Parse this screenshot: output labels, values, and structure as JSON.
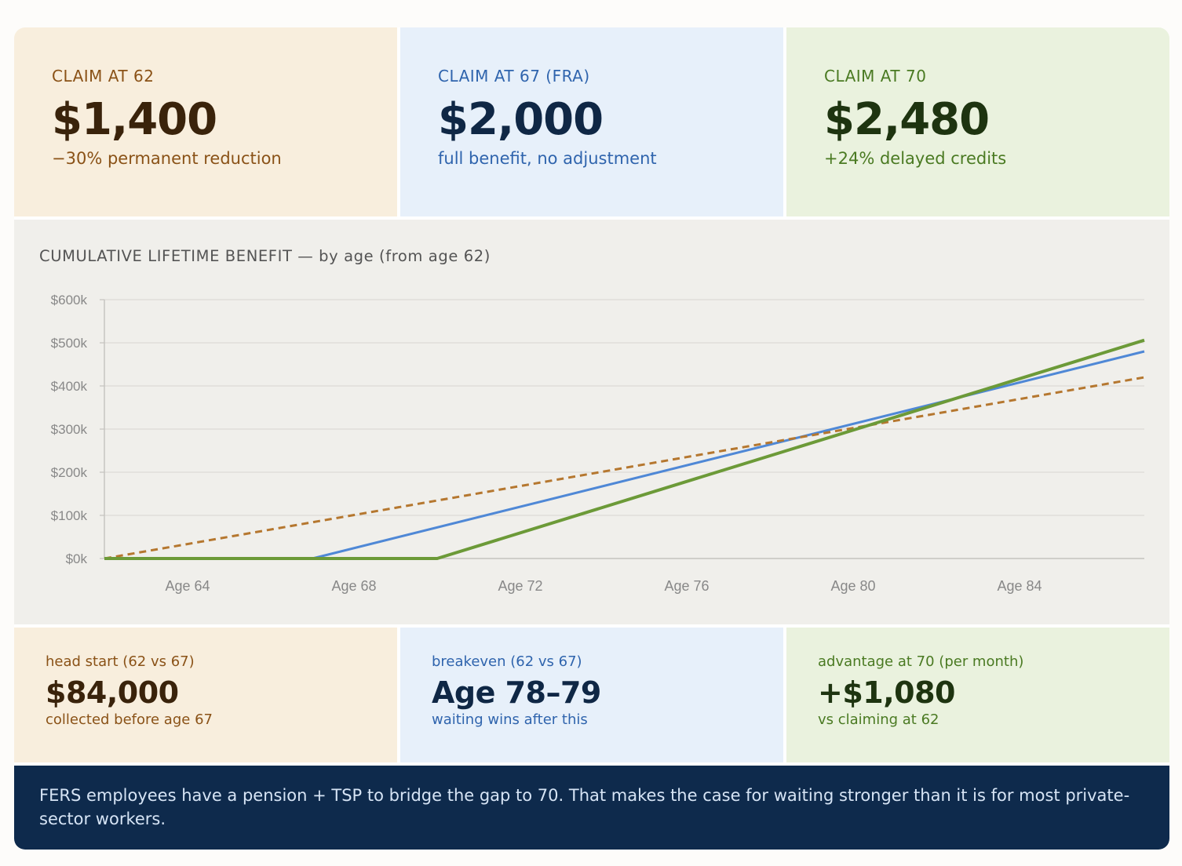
{
  "scenarios": [
    {
      "label": "CLAIM AT 62",
      "amount": "$1,400",
      "note": "−30% permanent reduction"
    },
    {
      "label": "CLAIM AT 67 (FRA)",
      "amount": "$2,000",
      "note": "full benefit, no adjustment"
    },
    {
      "label": "CLAIM AT 70",
      "amount": "$2,480",
      "note": "+24% delayed credits"
    }
  ],
  "stats": [
    {
      "label": "head start (62 vs 67)",
      "value": "$84,000",
      "note": "collected before age 67"
    },
    {
      "label": "breakeven (62 vs 67)",
      "value": "Age 78–79",
      "note": "waiting wins after this"
    },
    {
      "label": "advantage at 70 (per month)",
      "value": "+$1,080",
      "note": "vs claiming at 62"
    }
  ],
  "footer_note": "FERS employees have a pension + TSP to bridge the gap to 70. That makes the case for waiting stronger than it is for most private-sector workers.",
  "colors": {
    "claim62": "#b5772f",
    "claim67": "#4f88d6",
    "claim70": "#6c9a38",
    "grid": "#dcdbd6",
    "axis": "#c4c3be",
    "tick": "#888888"
  },
  "chart_data": {
    "type": "line",
    "title": "CUMULATIVE LIFETIME BENEFIT — by age (from age 62)",
    "xlabel": "",
    "ylabel": "",
    "xlim": [
      62,
      87
    ],
    "ylim": [
      0,
      600000
    ],
    "x_ticks": [
      64,
      68,
      72,
      76,
      80,
      84
    ],
    "x_tick_labels": [
      "Age 64",
      "Age 68",
      "Age 72",
      "Age 76",
      "Age 80",
      "Age 84"
    ],
    "y_ticks": [
      0,
      100000,
      200000,
      300000,
      400000,
      500000,
      600000
    ],
    "y_tick_labels": [
      "$0k",
      "$100k",
      "$200k",
      "$300k",
      "$400k",
      "$500k",
      "$600k"
    ],
    "grid": true,
    "legend": "none",
    "series": [
      {
        "key": "claim62",
        "dashed": true,
        "x": [
          62,
          87
        ],
        "y": [
          0,
          420000
        ]
      },
      {
        "key": "claim67",
        "dashed": false,
        "x": [
          62,
          67,
          87
        ],
        "y": [
          0,
          0,
          480000
        ]
      },
      {
        "key": "claim70",
        "dashed": false,
        "x": [
          62,
          70,
          87
        ],
        "y": [
          0,
          0,
          506000
        ]
      }
    ]
  }
}
